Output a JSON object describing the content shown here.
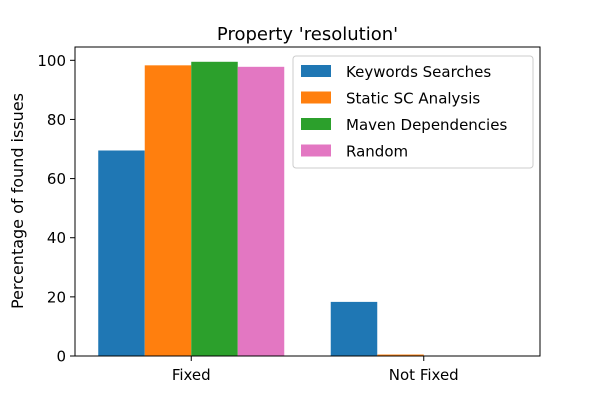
{
  "chart_data": {
    "type": "bar",
    "title": "Property 'resolution'",
    "xlabel": "",
    "ylabel": "Percentage of found issues",
    "categories": [
      "Fixed",
      "Not Fixed"
    ],
    "ylim": [
      0,
      104.5
    ],
    "yticks": [
      0,
      20,
      40,
      60,
      80,
      100
    ],
    "grid": false,
    "legend_position": "top-right",
    "series": [
      {
        "name": "Keywords Searches",
        "color": "#1f77b4",
        "values": [
          69.5,
          18.3
        ]
      },
      {
        "name": "Static SC Analysis",
        "color": "#ff7f0e",
        "values": [
          98.3,
          0.5
        ]
      },
      {
        "name": "Maven Dependencies",
        "color": "#2ca02c",
        "values": [
          99.5,
          0
        ]
      },
      {
        "name": "Random",
        "color": "#e377c2",
        "values": [
          97.8,
          0
        ]
      }
    ]
  }
}
